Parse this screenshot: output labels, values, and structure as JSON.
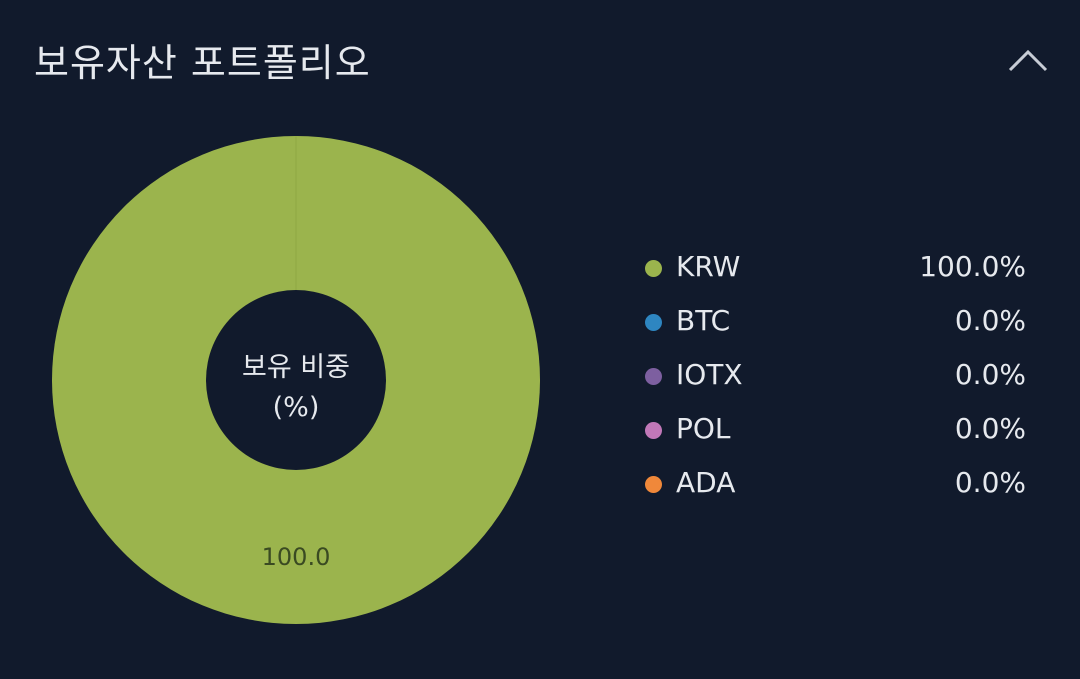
{
  "header": {
    "title": "보유자산 포트폴리오",
    "collapse_icon": "chevron-up-icon"
  },
  "chart_data": {
    "type": "pie",
    "center_label_line1": "보유 비중",
    "center_label_line2": "(%)",
    "categories": [
      "KRW",
      "BTC",
      "IOTX",
      "POL",
      "ADA"
    ],
    "values": [
      100.0,
      0.0,
      0.0,
      0.0,
      0.0
    ],
    "value_labels": [
      "100.0%",
      "0.0%",
      "0.0%",
      "0.0%",
      "0.0%"
    ],
    "slice_labels": [
      "100.0"
    ],
    "colors": [
      "#9bb44d",
      "#2e86c1",
      "#7d5fa0",
      "#c178b8",
      "#f0883a"
    ],
    "legend_position": "right"
  },
  "theme": {
    "background": "#111a2c",
    "text": "#e6e9ee"
  }
}
